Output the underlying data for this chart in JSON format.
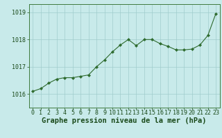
{
  "x": [
    0,
    1,
    2,
    3,
    4,
    5,
    6,
    7,
    8,
    9,
    10,
    11,
    12,
    13,
    14,
    15,
    16,
    17,
    18,
    19,
    20,
    21,
    22,
    23
  ],
  "y": [
    1016.1,
    1016.2,
    1016.4,
    1016.55,
    1016.6,
    1016.6,
    1016.65,
    1016.7,
    1017.0,
    1017.25,
    1017.55,
    1017.8,
    1018.0,
    1017.78,
    1018.0,
    1018.0,
    1017.85,
    1017.75,
    1017.62,
    1017.62,
    1017.65,
    1017.8,
    1018.15,
    1018.95
  ],
  "title": "Graphe pression niveau de la mer (hPa)",
  "xlim": [
    -0.5,
    23.5
  ],
  "ylim": [
    1015.5,
    1019.3
  ],
  "yticks": [
    1016,
    1017,
    1018,
    1019
  ],
  "xticks": [
    0,
    1,
    2,
    3,
    4,
    5,
    6,
    7,
    8,
    9,
    10,
    11,
    12,
    13,
    14,
    15,
    16,
    17,
    18,
    19,
    20,
    21,
    22,
    23
  ],
  "line_color": "#2d6a2d",
  "marker_color": "#2d6a2d",
  "bg_color": "#c8eaea",
  "grid_color": "#a0cccc",
  "title_color": "#1a4a1a",
  "tick_color": "#1a4a1a",
  "spine_color": "#3d7a3d",
  "font_size": 6,
  "title_font_size": 7.5
}
